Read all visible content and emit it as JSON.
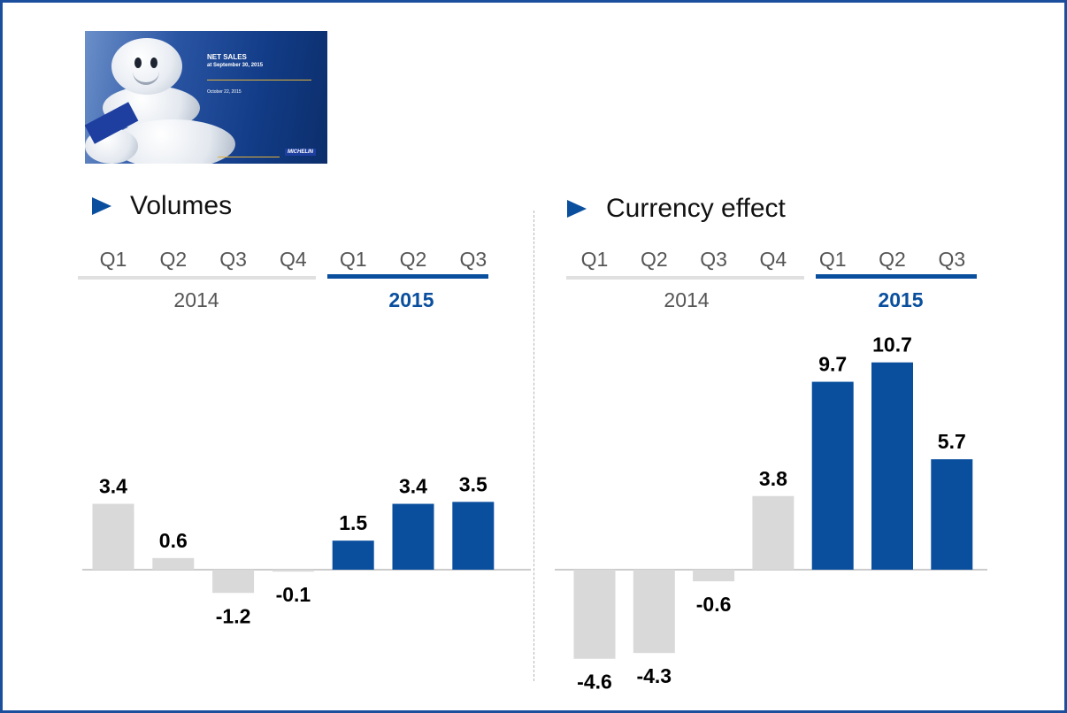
{
  "thumbnail": {
    "title": "NET SALES",
    "subtitle": "at September 30, 2015",
    "date": "October 22, 2015",
    "logo_text": "MICHELIN"
  },
  "colors": {
    "bar_2014": "#d9d9d9",
    "bar_2015": "#0a4f9e",
    "year_2014_text": "#555555",
    "year_2015_text": "#0a4f9e",
    "value_text": "#000000",
    "quarter_text": "#555555",
    "frame": "#1b4f9e"
  },
  "chart_data": [
    {
      "type": "bar",
      "title": "Volumes",
      "year_groups": [
        {
          "year": "2014",
          "quarters": [
            "Q1",
            "Q2",
            "Q3",
            "Q4"
          ]
        },
        {
          "year": "2015",
          "quarters": [
            "Q1",
            "Q2",
            "Q3"
          ]
        }
      ],
      "categories": [
        "Q1 2014",
        "Q2 2014",
        "Q3 2014",
        "Q4 2014",
        "Q1 2015",
        "Q2 2015",
        "Q3 2015"
      ],
      "values": [
        3.4,
        0.6,
        -1.2,
        -0.1,
        1.5,
        3.4,
        3.5
      ],
      "labels": [
        "3.4",
        "0.6",
        "-1.2",
        "-0.1",
        "1.5",
        "3.4",
        "3.5"
      ],
      "ylim": [
        -4.6,
        10.7
      ]
    },
    {
      "type": "bar",
      "title": "Currency effect",
      "year_groups": [
        {
          "year": "2014",
          "quarters": [
            "Q1",
            "Q2",
            "Q3",
            "Q4"
          ]
        },
        {
          "year": "2015",
          "quarters": [
            "Q1",
            "Q2",
            "Q3"
          ]
        }
      ],
      "categories": [
        "Q1 2014",
        "Q2 2014",
        "Q3 2014",
        "Q4 2014",
        "Q1 2015",
        "Q2 2015",
        "Q3 2015"
      ],
      "values": [
        -4.6,
        -4.3,
        -0.6,
        3.8,
        9.7,
        10.7,
        5.7
      ],
      "labels": [
        "-4.6",
        "-4.3",
        "-0.6",
        "3.8",
        "9.7",
        "10.7",
        "5.7"
      ],
      "ylim": [
        -4.6,
        10.7
      ]
    }
  ]
}
